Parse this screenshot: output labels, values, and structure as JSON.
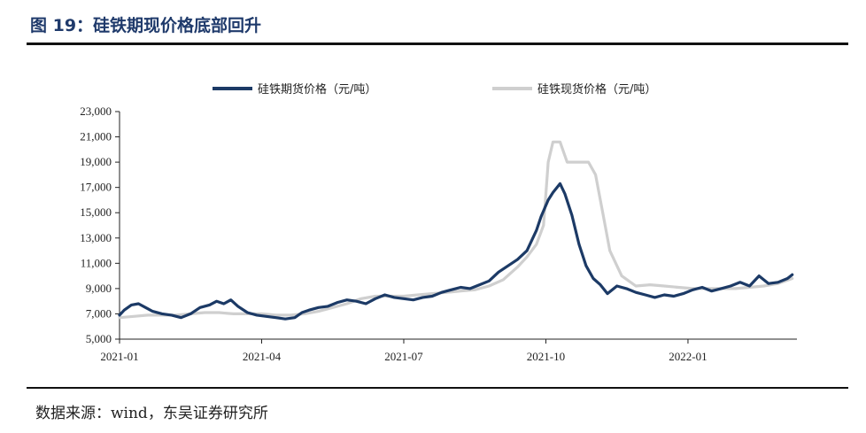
{
  "figure": {
    "title": "图 19：硅铁期现价格底部回升",
    "source": "数据来源：wind，东吴证券研究所"
  },
  "colors": {
    "futures": "#1c3a66",
    "spot": "#cfcfcf",
    "axis": "#222222"
  },
  "chart_data": {
    "type": "line",
    "title": "",
    "xlabel": "",
    "ylabel": "",
    "ylim": [
      5000,
      23000
    ],
    "y_ticks": [
      5000,
      7000,
      9000,
      11000,
      13000,
      15000,
      17000,
      19000,
      21000,
      23000
    ],
    "y_tick_labels": [
      "5,000",
      "7,000",
      "9,000",
      "11,000",
      "13,000",
      "15,000",
      "17,000",
      "19,000",
      "21,000",
      "23,000"
    ],
    "x_ticks": [
      "2021-01",
      "2021-04",
      "2021-07",
      "2021-10",
      "2022-01"
    ],
    "xlim_months": [
      0,
      14.3
    ],
    "legend_position": "top",
    "series": [
      {
        "name": "硅铁期货价格（元/吨）",
        "x": [
          0,
          0.1,
          0.25,
          0.4,
          0.55,
          0.7,
          0.9,
          1.1,
          1.3,
          1.5,
          1.7,
          1.9,
          2.05,
          2.2,
          2.35,
          2.5,
          2.7,
          2.9,
          3.1,
          3.3,
          3.5,
          3.7,
          3.85,
          4.0,
          4.2,
          4.4,
          4.6,
          4.8,
          5.0,
          5.2,
          5.4,
          5.6,
          5.8,
          6.0,
          6.2,
          6.4,
          6.6,
          6.8,
          7.0,
          7.2,
          7.4,
          7.6,
          7.8,
          8.0,
          8.2,
          8.4,
          8.6,
          8.8,
          8.9,
          9.05,
          9.15,
          9.3,
          9.4,
          9.55,
          9.7,
          9.85,
          10.0,
          10.15,
          10.3,
          10.5,
          10.7,
          10.9,
          11.1,
          11.3,
          11.5,
          11.7,
          11.9,
          12.1,
          12.3,
          12.5,
          12.7,
          12.9,
          13.1,
          13.3,
          13.5,
          13.7,
          13.9,
          14.1,
          14.2
        ],
        "values": [
          6900,
          7300,
          7700,
          7800,
          7500,
          7200,
          7000,
          6900,
          6700,
          7000,
          7500,
          7700,
          8000,
          7800,
          8100,
          7600,
          7100,
          6900,
          6800,
          6700,
          6600,
          6700,
          7100,
          7300,
          7500,
          7600,
          7900,
          8100,
          8000,
          7800,
          8200,
          8500,
          8300,
          8200,
          8100,
          8300,
          8400,
          8700,
          8900,
          9100,
          9000,
          9300,
          9600,
          10300,
          10800,
          11300,
          12000,
          13600,
          14700,
          16000,
          16600,
          17300,
          16500,
          14800,
          12500,
          10800,
          9800,
          9300,
          8600,
          9200,
          9000,
          8700,
          8500,
          8300,
          8500,
          8400,
          8600,
          8900,
          9100,
          8800,
          9000,
          9200,
          9500,
          9200,
          10000,
          9400,
          9500,
          9800,
          10100
        ]
      },
      {
        "name": "硅铁现货价格（元/吨）",
        "x": [
          0,
          0.3,
          0.6,
          0.9,
          1.2,
          1.5,
          1.8,
          2.1,
          2.4,
          2.7,
          3.0,
          3.3,
          3.6,
          3.9,
          4.2,
          4.5,
          4.8,
          5.1,
          5.4,
          5.7,
          6.0,
          6.3,
          6.6,
          6.9,
          7.2,
          7.5,
          7.8,
          8.1,
          8.4,
          8.6,
          8.8,
          8.95,
          9.0,
          9.05,
          9.15,
          9.3,
          9.45,
          9.6,
          9.9,
          10.05,
          10.2,
          10.35,
          10.6,
          10.9,
          11.2,
          11.5,
          11.8,
          12.1,
          12.4,
          12.7,
          13.0,
          13.3,
          13.6,
          13.9,
          14.2
        ],
        "values": [
          6700,
          6800,
          6900,
          6900,
          6900,
          7000,
          7100,
          7100,
          7000,
          7000,
          7000,
          6900,
          6900,
          7000,
          7200,
          7500,
          7800,
          8200,
          8400,
          8400,
          8400,
          8500,
          8600,
          8700,
          8800,
          8900,
          9200,
          9700,
          10700,
          11500,
          12500,
          14000,
          16500,
          19000,
          20600,
          20600,
          19000,
          19000,
          19000,
          18000,
          15000,
          12000,
          10000,
          9200,
          9300,
          9200,
          9100,
          9000,
          9000,
          9000,
          9000,
          9100,
          9200,
          9400,
          9800
        ]
      }
    ]
  }
}
